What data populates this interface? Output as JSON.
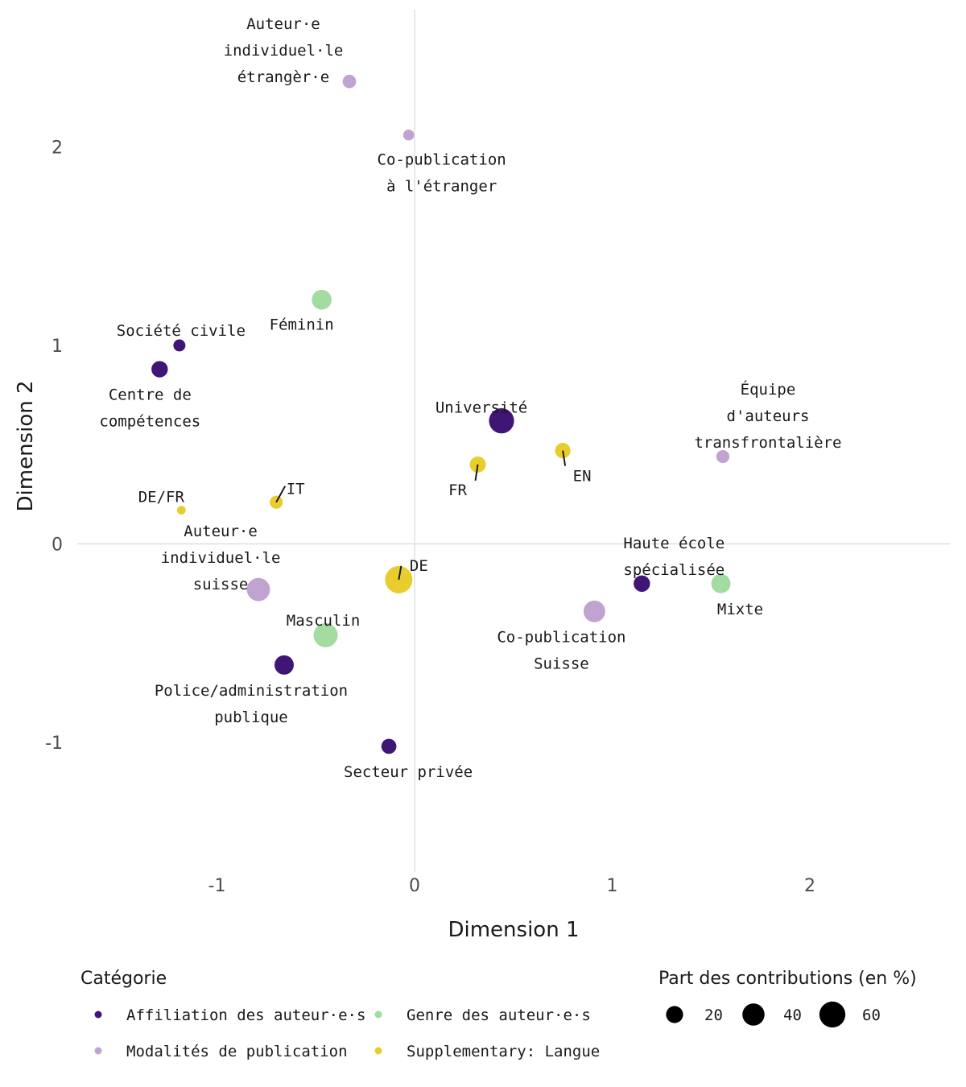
{
  "chart_data": {
    "type": "scatter",
    "xlabel": "Dimension 1",
    "ylabel": "Dimension 2",
    "xlim": [
      -1.8,
      2.7
    ],
    "ylim": [
      -1.6,
      2.7
    ],
    "x_ticks": [
      -1,
      0,
      1,
      2
    ],
    "y_ticks": [
      -1,
      0,
      1,
      2
    ],
    "x_tick_labels": [
      "-1",
      "0",
      "1",
      "2"
    ],
    "y_tick_labels": [
      "-1",
      "0",
      "1",
      "2"
    ],
    "grid": "zero lines only",
    "colors": {
      "affiliation": "#3f1675",
      "modalites": "#c1a3d1",
      "genre": "#a3dba0",
      "langue": "#e9cd2e"
    },
    "categories": [
      {
        "key": "affiliation",
        "name": "Affiliation des auteur·e·s"
      },
      {
        "key": "modalites",
        "name": "Modalités de publication"
      },
      {
        "key": "genre",
        "name": "Genre des auteur·e·s"
      },
      {
        "key": "langue",
        "name": "Supplementary: Langue"
      }
    ],
    "points": [
      {
        "label": [
          "Auteur·e",
          "individuel·le",
          "étrangèr·e"
        ],
        "x": -0.33,
        "y": 2.33,
        "category": "modalites",
        "size": 10
      },
      {
        "label": [
          "Co-publication",
          "à l'étranger"
        ],
        "x": -0.03,
        "y": 2.06,
        "category": "modalites",
        "size": 5
      },
      {
        "label": [
          "Féminin"
        ],
        "x": -0.47,
        "y": 1.23,
        "category": "genre",
        "size": 30
      },
      {
        "label": [
          "Société civile"
        ],
        "x": -1.19,
        "y": 1.0,
        "category": "affiliation",
        "size": 7
      },
      {
        "label": [
          "Centre de",
          "compétences"
        ],
        "x": -1.29,
        "y": 0.88,
        "category": "affiliation",
        "size": 18
      },
      {
        "label": [
          "Université"
        ],
        "x": 0.44,
        "y": 0.62,
        "category": "affiliation",
        "size": 55
      },
      {
        "label": [
          "Équipe",
          "d'auteurs",
          "transfrontalière"
        ],
        "x": 1.56,
        "y": 0.44,
        "category": "modalites",
        "size": 9
      },
      {
        "label": [
          "FR"
        ],
        "x": 0.32,
        "y": 0.4,
        "category": "langue",
        "size": 17
      },
      {
        "label": [
          "EN"
        ],
        "x": 0.75,
        "y": 0.47,
        "category": "langue",
        "size": 15
      },
      {
        "label": [
          "IT"
        ],
        "x": -0.7,
        "y": 0.21,
        "category": "langue",
        "size": 9
      },
      {
        "label": [
          "DE/FR"
        ],
        "x": -1.18,
        "y": 0.17,
        "category": "langue",
        "size": 2
      },
      {
        "label": [
          "DE"
        ],
        "x": -0.08,
        "y": -0.18,
        "category": "langue",
        "size": 68
      },
      {
        "label": [
          "Auteur·e",
          "individuel·le",
          "suisse"
        ],
        "x": -0.79,
        "y": -0.23,
        "category": "modalites",
        "size": 45
      },
      {
        "label": [
          "Haute école",
          "spécialisée"
        ],
        "x": 1.15,
        "y": -0.2,
        "category": "affiliation",
        "size": 18
      },
      {
        "label": [
          "Mixte"
        ],
        "x": 1.55,
        "y": -0.2,
        "category": "genre",
        "size": 28
      },
      {
        "label": [
          "Co-publication",
          "Suisse"
        ],
        "x": 0.91,
        "y": -0.34,
        "category": "modalites",
        "size": 38
      },
      {
        "label": [
          "Masculin"
        ],
        "x": -0.45,
        "y": -0.46,
        "category": "genre",
        "size": 50
      },
      {
        "label": [
          "Police/administration",
          "publique"
        ],
        "x": -0.66,
        "y": -0.61,
        "category": "affiliation",
        "size": 28
      },
      {
        "label": [
          "Secteur privée"
        ],
        "x": -0.13,
        "y": -1.02,
        "category": "affiliation",
        "size": 14
      }
    ],
    "legend": {
      "color_title": "Catégorie",
      "size_title": "Part des contributions (en %)",
      "size_breaks": [
        20,
        40,
        60
      ],
      "size_labels": [
        "20",
        "40",
        "60"
      ],
      "placement": "bottom"
    }
  }
}
